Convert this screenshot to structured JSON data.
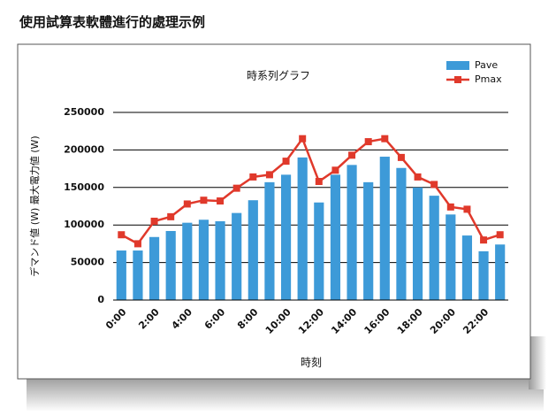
{
  "heading": "使用試算表軟體進行的處理示例",
  "chart_data": {
    "type": "bar-line",
    "title": "時系列グラフ",
    "x_label": "時刻",
    "y_label": "デマンド値 (W) 最大電力値 (W)",
    "categories": [
      "0:00",
      null,
      "2:00",
      null,
      "4:00",
      null,
      "6:00",
      null,
      "8:00",
      null,
      "10:00",
      null,
      "12:00",
      null,
      "14:00",
      null,
      "16:00",
      null,
      "18:00",
      null,
      "20:00",
      null,
      "22:00",
      null
    ],
    "series": [
      {
        "name": "Pave",
        "type": "bar",
        "color": "#3d9ad8",
        "values": [
          66000,
          66000,
          84000,
          92000,
          103000,
          107000,
          105000,
          116000,
          133000,
          157000,
          167000,
          190000,
          130000,
          167000,
          180000,
          157000,
          191000,
          176000,
          150000,
          139000,
          114000,
          86000,
          65000,
          74000
        ]
      },
      {
        "name": "Pmax",
        "type": "line",
        "color": "#e0392b",
        "values": [
          87000,
          75000,
          105000,
          111000,
          128000,
          133000,
          132000,
          149000,
          164000,
          167000,
          185000,
          215000,
          158000,
          173000,
          193000,
          211000,
          215000,
          190000,
          164000,
          154000,
          124000,
          121000,
          80000,
          87000
        ]
      }
    ],
    "ylim": [
      0,
      250000
    ],
    "yticks": [
      0,
      50000,
      100000,
      150000,
      200000,
      250000
    ],
    "grid": true,
    "legend": "top-right"
  }
}
